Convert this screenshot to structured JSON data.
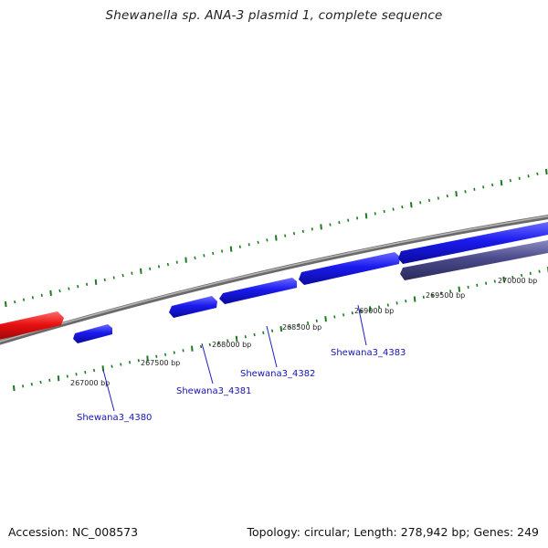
{
  "title": "Shewanella sp. ANA-3 plasmid 1, complete sequence",
  "footer": {
    "accession": "Accession: NC_008573",
    "summary": "Topology: circular; Length: 278,942 bp; Genes: 249"
  },
  "colors": {
    "backbone": "#8c8c8c",
    "tick": "#1e7a1e",
    "gene_forward": "#1a1aee",
    "gene_reverse": "#4a4a8c",
    "gene_other": "#e01010",
    "label": "#1414b4"
  },
  "ticks": [
    {
      "label": "267000 bp"
    },
    {
      "label": "267500 bp"
    },
    {
      "label": "268000 bp"
    },
    {
      "label": "268500 bp"
    },
    {
      "label": "269000 bp"
    },
    {
      "label": "269500 bp"
    },
    {
      "label": "270000 bp"
    }
  ],
  "gene_labels": [
    {
      "label": "Shewana3_4380"
    },
    {
      "label": "Shewana3_4381"
    },
    {
      "label": "Shewana3_4382"
    },
    {
      "label": "Shewana3_4383"
    }
  ]
}
